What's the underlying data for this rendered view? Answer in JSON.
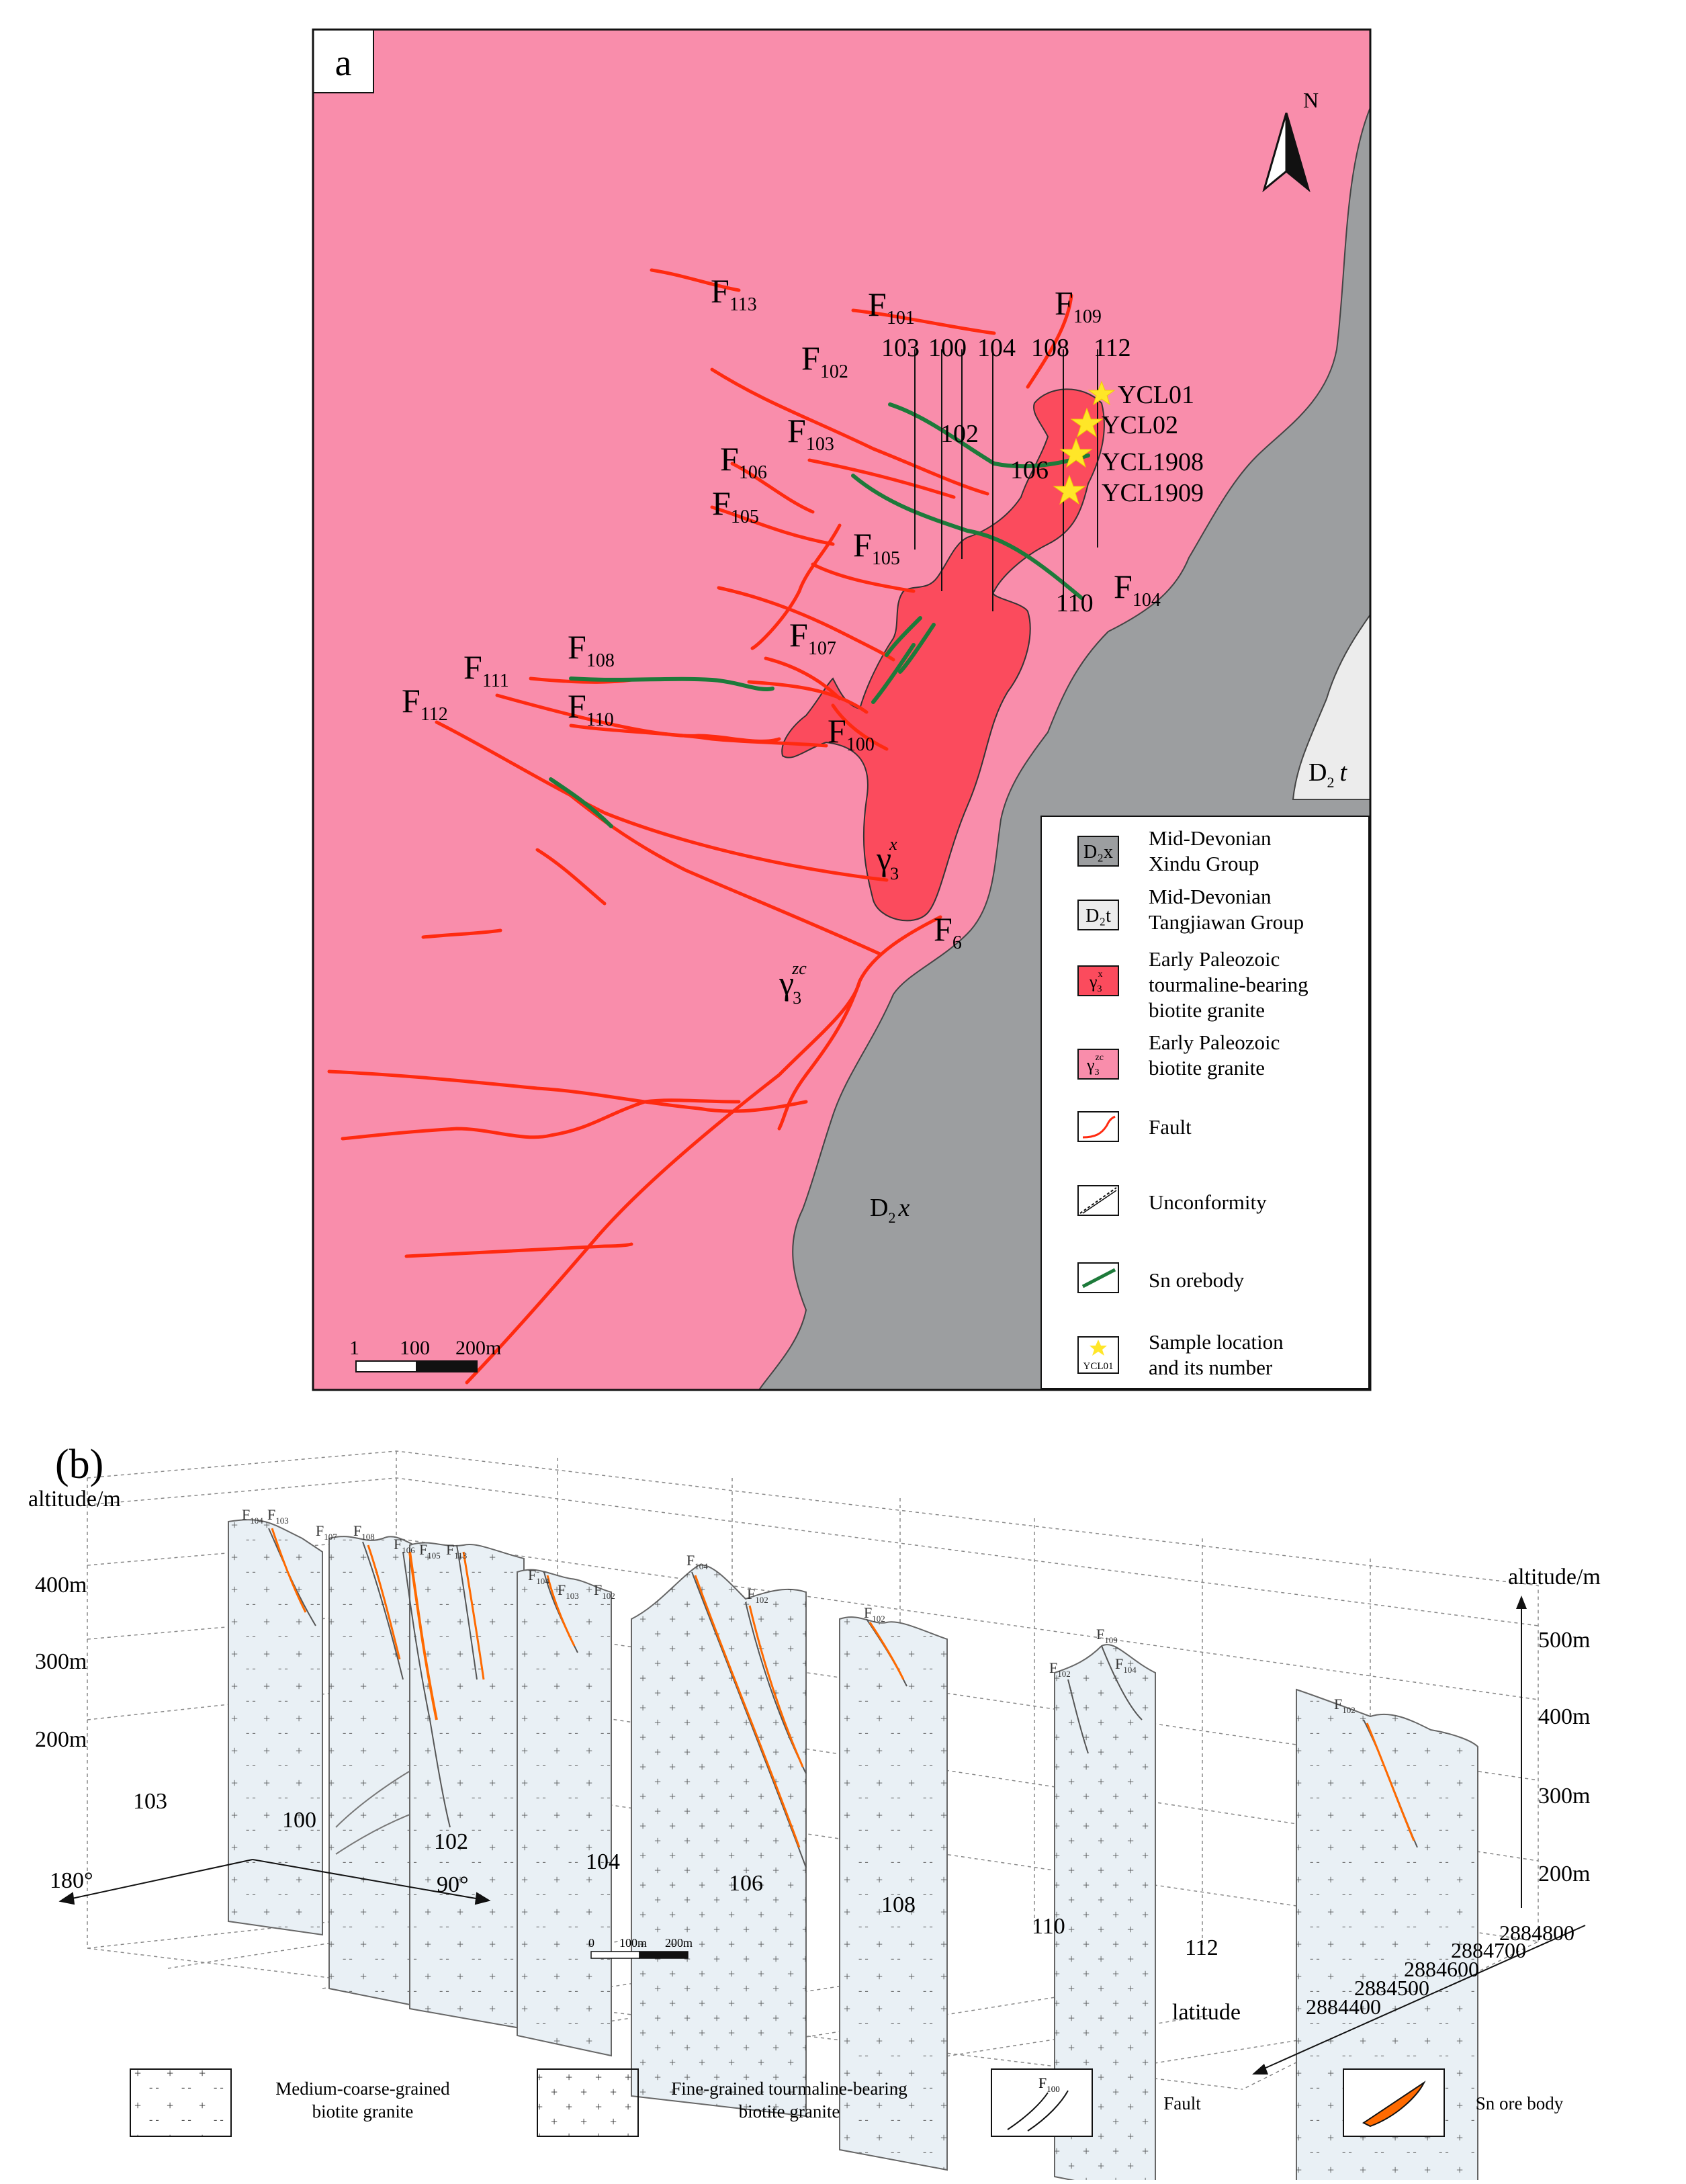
{
  "panel_a": {
    "label": "a",
    "north": "N",
    "faults": {
      "F113": {
        "main": "F",
        "sub": "113"
      },
      "F101": {
        "main": "F",
        "sub": "101"
      },
      "F109": {
        "main": "F",
        "sub": "109"
      },
      "F102": {
        "main": "F",
        "sub": "102"
      },
      "F103": {
        "main": "F",
        "sub": "103"
      },
      "F106": {
        "main": "F",
        "sub": "106"
      },
      "F105a": {
        "main": "F",
        "sub": "105"
      },
      "F105b": {
        "main": "F",
        "sub": "105"
      },
      "F104": {
        "main": "F",
        "sub": "104"
      },
      "F107": {
        "main": "F",
        "sub": "107"
      },
      "F108": {
        "main": "F",
        "sub": "108"
      },
      "F111": {
        "main": "F",
        "sub": "111"
      },
      "F110": {
        "main": "F",
        "sub": "110"
      },
      "F112": {
        "main": "F",
        "sub": "112"
      },
      "F100": {
        "main": "F",
        "sub": "100"
      },
      "F6": {
        "main": "F",
        "sub": "6"
      }
    },
    "lines": [
      "103",
      "100",
      "104",
      "108",
      "112",
      "102",
      "106",
      "110"
    ],
    "samples": [
      "YCL01",
      "YCL02",
      "YCL1908",
      "YCL1909"
    ],
    "units": {
      "gamma_x": {
        "main": "γ",
        "sub": "3",
        "sup": "x"
      },
      "gamma_zc": {
        "main": "γ",
        "sub": "3",
        "sup": "zc"
      },
      "d2t": {
        "main": "D",
        "sub": "2",
        "rest": "t"
      },
      "d2x": {
        "main": "D",
        "sub": "2",
        "rest": "x"
      }
    },
    "scale": {
      "t1": "1",
      "t2": "100",
      "t3": "200m"
    },
    "legend": {
      "d2x_box": "D₂x",
      "d2x_text": [
        "Mid-Devonian",
        "Xindu Group"
      ],
      "d2t_box": "D₂t",
      "d2t_text": [
        "Mid-Devonian",
        "Tangjiawan Group"
      ],
      "gx_text": [
        "Early Paleozoic",
        "tourmaline-bearing",
        "biotite granite"
      ],
      "gzc_text": [
        "Early Paleozoic",
        "biotite granite"
      ],
      "fault": "Fault",
      "unconformity": "Unconformity",
      "orebody": "Sn orebody",
      "sample_box": "YCL01",
      "sample_text": [
        "Sample location",
        "and its number"
      ]
    },
    "colors": {
      "granite": "#f98dab",
      "tourmaline_granite": "#fb4b5d",
      "xindu": "#9c9ea0",
      "tangjiawan": "#ececec",
      "fault": "#ff2a10",
      "orebody": "#1d7a3a",
      "sample": "#ffe628"
    }
  },
  "panel_b": {
    "label": "(b)",
    "left_axis_title": "altitude/m",
    "left_ticks": [
      "400m",
      "300m",
      "200m"
    ],
    "right_axis_title": "altitude/m",
    "right_ticks": [
      "500m",
      "400m",
      "300m",
      "200m"
    ],
    "line_numbers": [
      "103",
      "100",
      "102",
      "104",
      "106",
      "108",
      "110",
      "112"
    ],
    "latitude_ticks": [
      "2884800",
      "2884700",
      "2884600",
      "2884500",
      "2884400"
    ],
    "latitude_label": "latitude",
    "azimuth": {
      "left": "180°",
      "right": "90°"
    },
    "scale": {
      "t1": "0",
      "t2": "100m",
      "t3": "200m"
    },
    "section_faults": {
      "s1a": {
        "main": "F",
        "sub": "104"
      },
      "s1b": {
        "main": "F",
        "sub": "103"
      },
      "s2a": {
        "main": "F",
        "sub": "107"
      },
      "s2b": {
        "main": "F",
        "sub": "108"
      },
      "s2c": {
        "main": "F",
        "sub": "106"
      },
      "s2d": {
        "main": "F",
        "sub": "105"
      },
      "s2e": {
        "main": "F",
        "sub": "113"
      },
      "s3a": {
        "main": "F",
        "sub": "104"
      },
      "s3b": {
        "main": "F",
        "sub": "103"
      },
      "s3c": {
        "main": "F",
        "sub": "102"
      },
      "s4a": {
        "main": "F",
        "sub": "104"
      },
      "s4b": {
        "main": "F",
        "sub": "102"
      },
      "s5a": {
        "main": "F",
        "sub": "102"
      },
      "s6a": {
        "main": "F",
        "sub": "102"
      },
      "s6b": {
        "main": "F",
        "sub": "109"
      },
      "s6c": {
        "main": "F",
        "sub": "104"
      },
      "s7a": {
        "main": "F",
        "sub": "102"
      }
    },
    "legend": {
      "medium_coarse": [
        "Medium-coarse-grained",
        "biotite granite"
      ],
      "fine_grained": [
        "Fine-grained tourmaline-bearing",
        "biotite granite"
      ],
      "fault": "Fault",
      "fault_box": {
        "main": "F",
        "sub": "100"
      },
      "sn_ore": "Sn ore body"
    }
  }
}
